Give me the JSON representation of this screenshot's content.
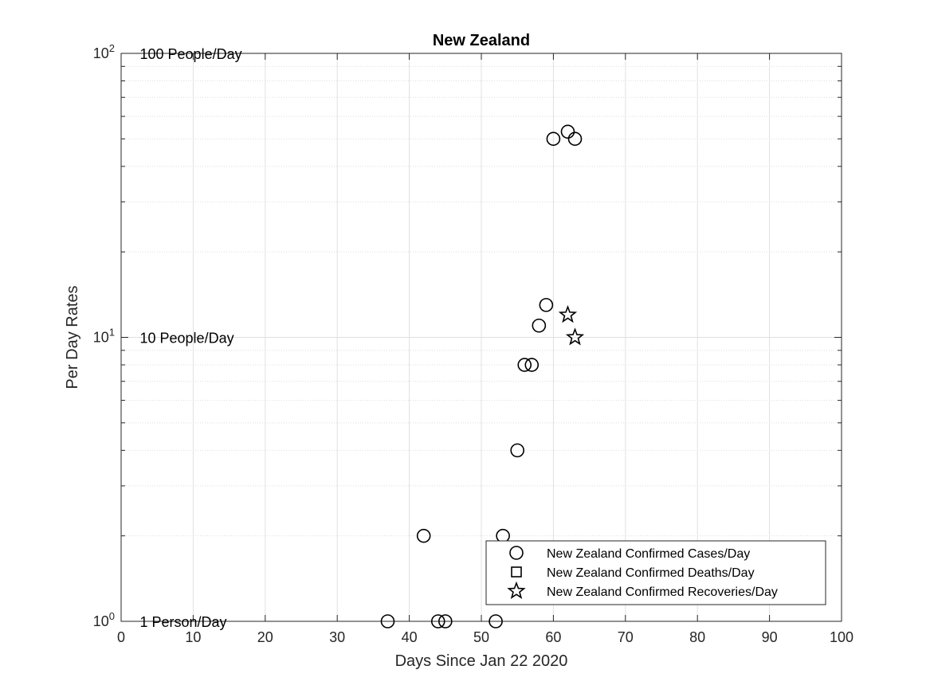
{
  "chart_data": {
    "type": "scatter",
    "title": "New Zealand",
    "xlabel": "Days Since Jan 22 2020",
    "ylabel": "Per Day Rates",
    "xlim": [
      0,
      100
    ],
    "ylim": [
      1,
      100
    ],
    "yscale": "log",
    "grid": true,
    "x_ticks": [
      0,
      10,
      20,
      30,
      40,
      50,
      60,
      70,
      80,
      90,
      100
    ],
    "y_ticks": [
      {
        "value": 1,
        "base": "10",
        "exp": "0"
      },
      {
        "value": 10,
        "base": "10",
        "exp": "1"
      },
      {
        "value": 100,
        "base": "10",
        "exp": "2"
      }
    ],
    "annotations": [
      {
        "text": "100 People/Day",
        "y": 100
      },
      {
        "text": "10 People/Day",
        "y": 10
      },
      {
        "text": "1 Person/Day",
        "y": 1
      }
    ],
    "legend_position": "bottom-right",
    "series": [
      {
        "name": "New Zealand Confirmed Cases/Day",
        "marker": "circle",
        "x": [
          37,
          42,
          44,
          45,
          52,
          53,
          55,
          56,
          57,
          58,
          59,
          60,
          62,
          63
        ],
        "y": [
          1,
          2,
          1,
          1,
          1,
          2,
          4,
          8,
          8,
          11,
          13,
          50,
          53,
          50
        ]
      },
      {
        "name": "New Zealand Confirmed Deaths/Day",
        "marker": "square",
        "x": [],
        "y": []
      },
      {
        "name": "New Zealand Confirmed Recoveries/Day",
        "marker": "star",
        "x": [
          62,
          63
        ],
        "y": [
          12,
          10
        ]
      }
    ],
    "colors": {
      "marker": "#000000",
      "axis": "#262626",
      "grid": "#e0e0e0",
      "minor_grid": "#dedede",
      "background": "#ffffff"
    }
  }
}
